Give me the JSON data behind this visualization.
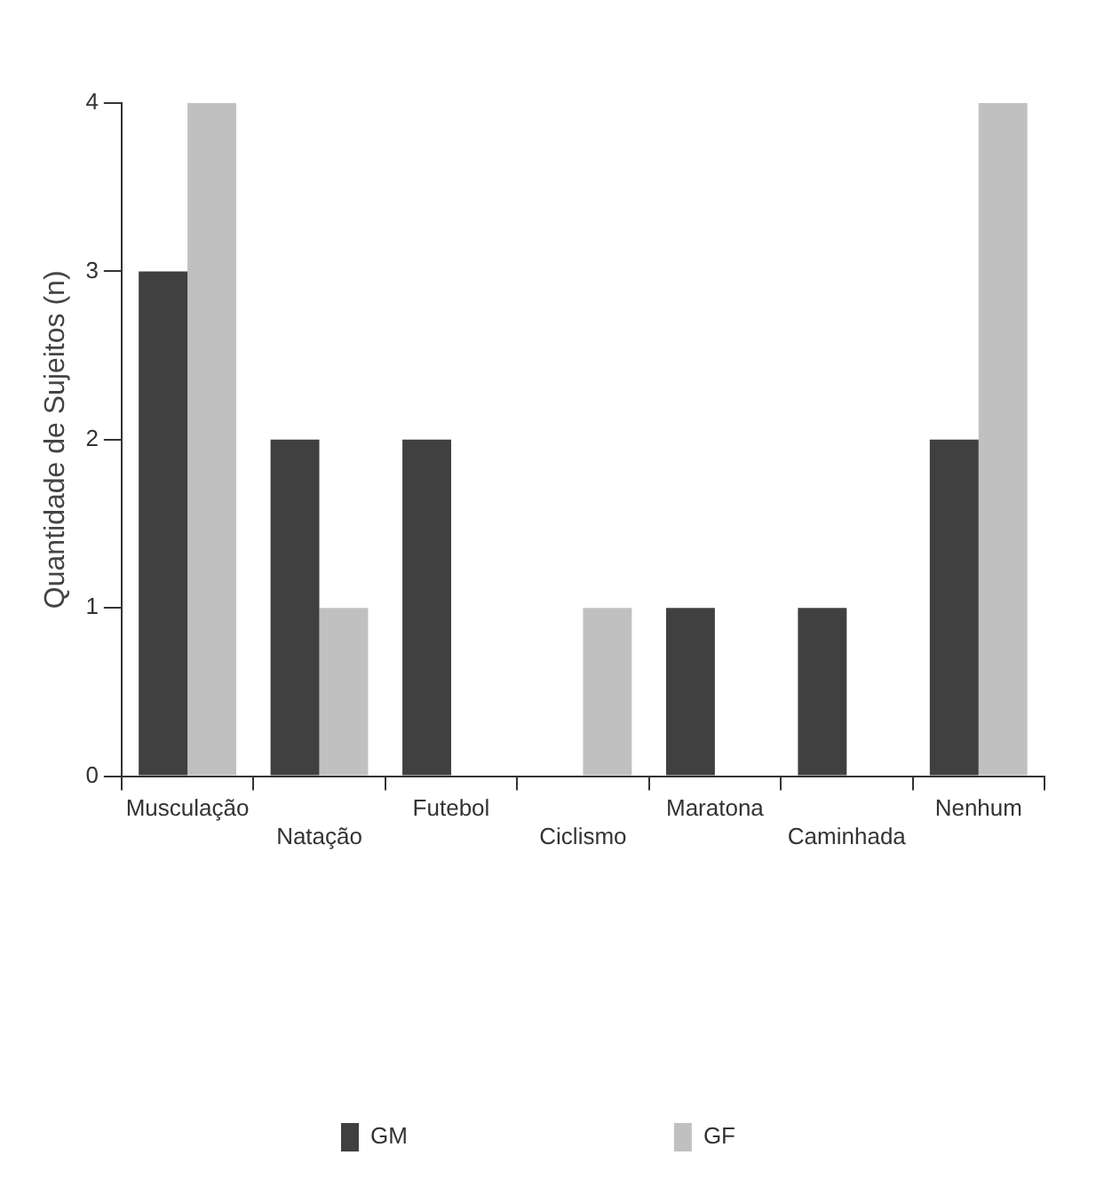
{
  "chart_data": {
    "type": "bar",
    "ylabel": "Quantidade de Sujeitos (n)",
    "categories": [
      "Musculação",
      "Natação",
      "Futebol",
      "Ciclismo",
      "Maratona",
      "Caminhada",
      "Nenhum"
    ],
    "series": [
      {
        "name": "GM",
        "color": "#404040",
        "values": [
          3,
          2,
          2,
          0,
          1,
          1,
          2
        ]
      },
      {
        "name": "GF",
        "color": "#c0c0c0",
        "values": [
          4,
          1,
          0,
          1,
          0,
          0,
          4
        ]
      }
    ],
    "ylim": [
      0,
      4
    ],
    "yticks": [
      0,
      1,
      2,
      3,
      4
    ],
    "grid": false,
    "legend": "bottom"
  }
}
